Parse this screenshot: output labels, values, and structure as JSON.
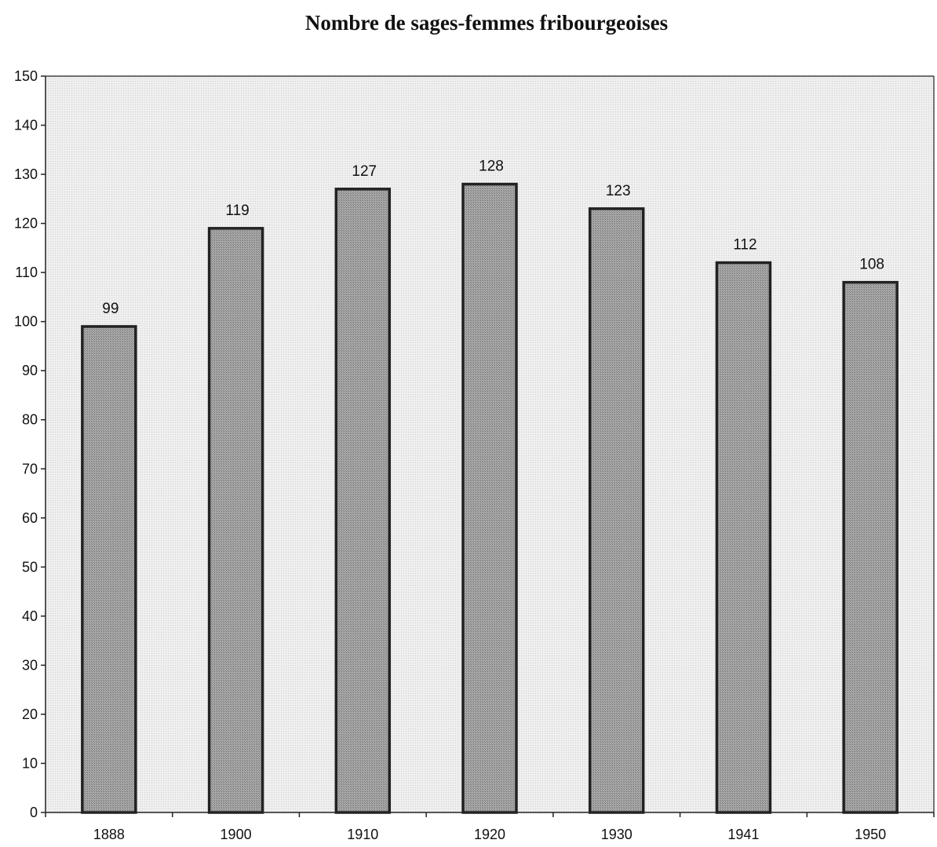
{
  "chart_data": {
    "type": "bar",
    "title": "Nombre de sages-femmes fribourgeoises",
    "xlabel": "",
    "ylabel": "",
    "categories": [
      "1888",
      "1900",
      "1910",
      "1920",
      "1930",
      "1941",
      "1950"
    ],
    "values": [
      99,
      119,
      127,
      128,
      123,
      112,
      108
    ],
    "data_labels": [
      "99",
      "119",
      "127",
      "128",
      "123",
      "112",
      "108"
    ],
    "ylim": [
      0,
      150
    ],
    "yticks": [
      0,
      10,
      20,
      30,
      40,
      50,
      60,
      70,
      80,
      90,
      100,
      110,
      120,
      130,
      140,
      150
    ],
    "ytick_labels": [
      "0",
      "10",
      "20",
      "30",
      "40",
      "50",
      "60",
      "70",
      "80",
      "90",
      "100",
      "110",
      "120",
      "130",
      "140",
      "150"
    ],
    "grid": false,
    "legend": "none",
    "colors": {
      "plot_background": "#ebebeb",
      "bar_fill": "#9a9a9a",
      "bar_outline": "#222222",
      "axis": "#222222"
    }
  }
}
